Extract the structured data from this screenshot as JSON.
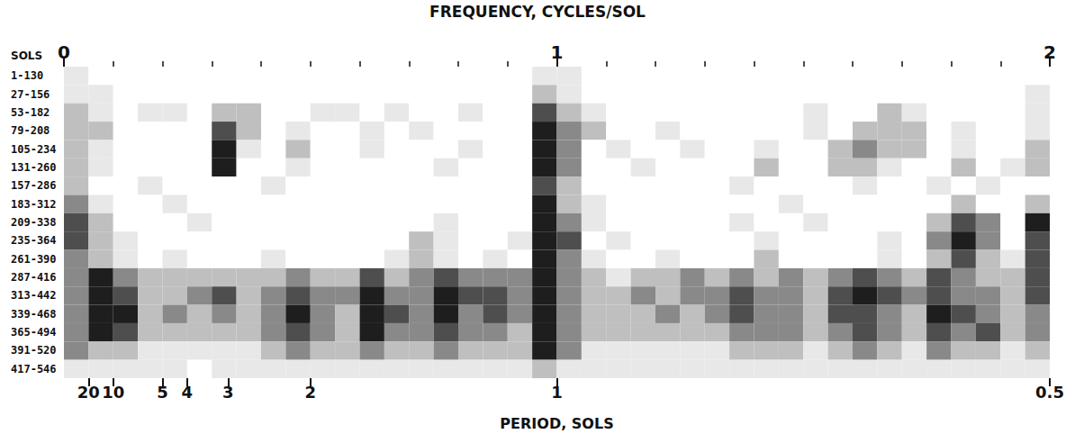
{
  "chart_data": {
    "type": "heatmap",
    "title": "FREQUENCY, CYCLES/SOL",
    "xlabel": "PERIOD, SOLS",
    "ylabel": "SOLS",
    "xlim": [
      0,
      2
    ],
    "xticks": [
      0,
      1,
      2
    ],
    "x2lim": [
      0,
      2
    ],
    "x2ticks": [
      {
        "value": 0.05,
        "label": "20"
      },
      {
        "value": 0.1,
        "label": "10"
      },
      {
        "value": 0.2,
        "label": "5"
      },
      {
        "value": 0.25,
        "label": "4"
      },
      {
        "value": 0.333,
        "label": "3"
      },
      {
        "value": 0.5,
        "label": "2"
      },
      {
        "value": 1,
        "label": "1"
      },
      {
        "value": 2,
        "label": "0.5"
      }
    ],
    "categories": [
      "1-130",
      "27-156",
      "53-182",
      "79-208",
      "105-234",
      "131-260",
      "157-286",
      "183-312",
      "209-338",
      "235-364",
      "261-390",
      "287-416",
      "313-442",
      "339-468",
      "365-494",
      "391-520",
      "417-546"
    ],
    "bins": [
      0,
      0.05,
      0.1,
      0.15,
      0.2,
      0.25,
      0.3,
      0.35,
      0.4,
      0.45,
      0.5,
      0.55,
      0.6,
      0.65,
      0.7,
      0.75,
      0.8,
      0.85,
      0.9,
      0.95,
      1,
      1.05,
      1.1,
      1.15,
      1.2,
      1.25,
      1.3,
      1.35,
      1.4,
      1.45,
      1.5,
      1.55,
      1.6,
      1.65,
      1.7,
      1.75,
      1.8,
      1.85,
      1.9,
      1.95,
      2
    ],
    "value_range": [
      0,
      5
    ],
    "cells": [
      [
        1,
        0,
        0,
        0,
        0,
        0,
        0,
        0,
        0,
        0,
        0,
        0,
        0,
        0,
        0,
        0,
        0,
        0,
        0,
        1,
        1,
        0,
        0,
        0,
        0,
        0,
        0,
        0,
        0,
        0,
        0,
        0,
        0,
        0,
        0,
        0,
        0,
        0,
        0,
        0
      ],
      [
        1,
        1,
        0,
        0,
        0,
        0,
        0,
        0,
        0,
        0,
        0,
        0,
        0,
        0,
        0,
        0,
        0,
        0,
        0,
        2,
        1,
        0,
        0,
        0,
        0,
        0,
        0,
        0,
        0,
        0,
        0,
        0,
        0,
        0,
        0,
        0,
        0,
        0,
        0,
        1
      ],
      [
        2,
        1,
        0,
        1,
        1,
        0,
        2,
        2,
        0,
        0,
        1,
        1,
        0,
        1,
        0,
        0,
        1,
        0,
        0,
        4,
        2,
        1,
        0,
        0,
        0,
        0,
        0,
        0,
        0,
        0,
        1,
        0,
        0,
        2,
        1,
        0,
        0,
        0,
        0,
        1
      ],
      [
        2,
        2,
        0,
        0,
        0,
        0,
        4,
        2,
        0,
        1,
        0,
        0,
        1,
        0,
        1,
        0,
        0,
        0,
        0,
        5,
        3,
        2,
        0,
        0,
        1,
        0,
        0,
        0,
        0,
        0,
        1,
        0,
        2,
        2,
        2,
        0,
        1,
        0,
        0,
        1
      ],
      [
        2,
        1,
        0,
        0,
        0,
        0,
        5,
        1,
        0,
        2,
        0,
        0,
        1,
        0,
        0,
        0,
        1,
        0,
        0,
        5,
        3,
        0,
        1,
        0,
        0,
        1,
        0,
        0,
        1,
        0,
        0,
        2,
        3,
        2,
        2,
        0,
        1,
        0,
        0,
        2
      ],
      [
        2,
        1,
        0,
        0,
        0,
        0,
        5,
        0,
        0,
        1,
        0,
        0,
        0,
        0,
        0,
        1,
        0,
        0,
        0,
        5,
        3,
        0,
        0,
        1,
        0,
        0,
        0,
        0,
        2,
        0,
        0,
        2,
        2,
        1,
        0,
        0,
        2,
        0,
        1,
        2
      ],
      [
        2,
        0,
        0,
        1,
        0,
        0,
        0,
        0,
        1,
        0,
        0,
        0,
        0,
        0,
        0,
        0,
        0,
        0,
        0,
        4,
        2,
        0,
        0,
        0,
        0,
        0,
        0,
        1,
        0,
        0,
        0,
        0,
        1,
        0,
        0,
        1,
        0,
        1,
        0,
        0
      ],
      [
        3,
        1,
        0,
        0,
        1,
        0,
        0,
        0,
        0,
        0,
        0,
        0,
        0,
        0,
        0,
        0,
        0,
        0,
        0,
        5,
        2,
        1,
        0,
        0,
        0,
        0,
        0,
        0,
        0,
        1,
        0,
        0,
        0,
        0,
        0,
        0,
        2,
        0,
        0,
        2
      ],
      [
        4,
        2,
        0,
        0,
        0,
        1,
        0,
        0,
        0,
        0,
        0,
        0,
        0,
        0,
        0,
        1,
        0,
        0,
        0,
        5,
        3,
        1,
        0,
        0,
        0,
        0,
        0,
        1,
        0,
        0,
        1,
        0,
        0,
        0,
        0,
        2,
        4,
        3,
        0,
        5
      ],
      [
        4,
        2,
        1,
        0,
        0,
        0,
        0,
        0,
        0,
        0,
        0,
        0,
        0,
        0,
        2,
        1,
        0,
        0,
        1,
        5,
        4,
        0,
        1,
        0,
        0,
        0,
        0,
        0,
        1,
        0,
        0,
        0,
        0,
        1,
        0,
        3,
        5,
        3,
        0,
        4
      ],
      [
        3,
        2,
        1,
        0,
        1,
        0,
        0,
        0,
        1,
        0,
        0,
        0,
        0,
        1,
        2,
        1,
        0,
        1,
        0,
        5,
        3,
        1,
        0,
        0,
        1,
        0,
        0,
        0,
        2,
        0,
        0,
        0,
        0,
        1,
        0,
        2,
        4,
        2,
        1,
        4
      ],
      [
        3,
        5,
        3,
        2,
        2,
        2,
        2,
        2,
        2,
        3,
        2,
        2,
        4,
        2,
        3,
        4,
        3,
        3,
        3,
        5,
        3,
        2,
        1,
        2,
        2,
        3,
        2,
        3,
        2,
        3,
        2,
        3,
        4,
        3,
        2,
        4,
        3,
        2,
        2,
        4
      ],
      [
        3,
        5,
        4,
        2,
        2,
        3,
        4,
        2,
        3,
        4,
        3,
        3,
        5,
        3,
        3,
        5,
        4,
        4,
        3,
        5,
        3,
        2,
        2,
        3,
        2,
        3,
        3,
        4,
        3,
        3,
        2,
        4,
        5,
        4,
        3,
        4,
        3,
        3,
        2,
        4
      ],
      [
        3,
        5,
        5,
        2,
        3,
        2,
        3,
        2,
        3,
        5,
        3,
        2,
        5,
        4,
        3,
        5,
        3,
        4,
        3,
        5,
        3,
        2,
        2,
        2,
        3,
        2,
        3,
        4,
        3,
        3,
        2,
        4,
        4,
        3,
        2,
        5,
        4,
        3,
        2,
        3
      ],
      [
        3,
        5,
        4,
        2,
        2,
        2,
        2,
        2,
        3,
        4,
        3,
        2,
        5,
        3,
        3,
        4,
        3,
        3,
        2,
        5,
        3,
        2,
        2,
        2,
        2,
        2,
        2,
        3,
        3,
        3,
        2,
        3,
        4,
        3,
        2,
        4,
        3,
        4,
        2,
        3
      ],
      [
        3,
        2,
        2,
        1,
        1,
        1,
        1,
        1,
        2,
        3,
        2,
        2,
        3,
        2,
        2,
        3,
        2,
        2,
        2,
        5,
        3,
        1,
        1,
        1,
        1,
        1,
        1,
        2,
        2,
        2,
        1,
        2,
        3,
        2,
        1,
        3,
        2,
        2,
        1,
        2
      ],
      [
        1,
        1,
        1,
        1,
        1,
        0,
        1,
        1,
        1,
        1,
        1,
        1,
        1,
        1,
        1,
        1,
        1,
        1,
        1,
        2,
        1,
        1,
        1,
        1,
        1,
        1,
        1,
        1,
        1,
        1,
        1,
        1,
        1,
        1,
        1,
        1,
        1,
        1,
        1,
        1
      ]
    ]
  }
}
